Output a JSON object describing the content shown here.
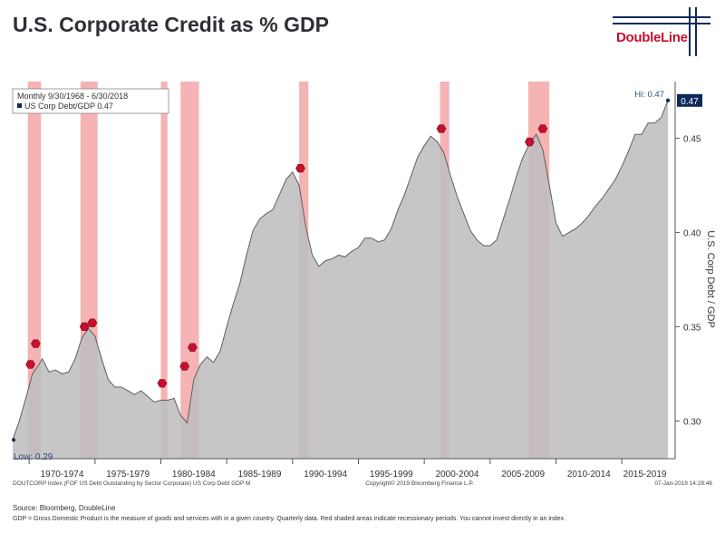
{
  "page": {
    "title": "U.S. Corporate Credit as % GDP",
    "logo_text": "DoubleLine",
    "source": "Source:  Bloomberg, DoubleLine",
    "footnote": "GDP = Gross Domestic Product is the measure of goods and services with in a given country. Quarterly data. Red shaded areas indicate recessionary periods. You cannot invest directly in an index."
  },
  "colors": {
    "area_fill": "#bebebe",
    "area_line": "#5a5f64",
    "recession": "#f4a6a6",
    "marker": "#c8102e",
    "axis_text": "#333333",
    "last_value_bg": "#0c2a5a"
  },
  "chart_data": {
    "type": "area",
    "ylabel": "U.S. Corp Debt / GDP",
    "ylim": [
      0.28,
      0.48
    ],
    "yticks": [
      0.3,
      0.35,
      0.4,
      0.45
    ],
    "ytick_labels": [
      "0.30",
      "0.35",
      "0.40",
      "0.45"
    ],
    "xlim": [
      1968.75,
      2018.5
    ],
    "xtick_labels": [
      "1970-1974",
      "1975-1979",
      "1980-1984",
      "1985-1989",
      "1990-1994",
      "1995-1999",
      "2000-2004",
      "2005-2009",
      "2010-2014",
      "2015-2019"
    ],
    "xtick_ranges": [
      [
        1970,
        1975
      ],
      [
        1975,
        1980
      ],
      [
        1980,
        1985
      ],
      [
        1985,
        1990
      ],
      [
        1990,
        1995
      ],
      [
        1995,
        2000
      ],
      [
        2000,
        2005
      ],
      [
        2005,
        2010
      ],
      [
        2010,
        2015
      ],
      [
        2015,
        2019
      ]
    ],
    "legend": {
      "position": "top-left",
      "line1": "Monthly 9/30/1968 - 6/30/2018",
      "line2": "US Corp Debt/GDP 0.47"
    },
    "series": [
      {
        "name": "US Corp Debt/GDP",
        "x": [
          1968.75,
          1969.25,
          1969.75,
          1970.25,
          1970.75,
          1971.0,
          1971.5,
          1972.0,
          1972.5,
          1973.0,
          1973.5,
          1974.0,
          1974.5,
          1975.0,
          1975.5,
          1976.0,
          1976.5,
          1977.0,
          1977.5,
          1978.0,
          1978.5,
          1979.0,
          1979.5,
          1980.0,
          1980.5,
          1981.0,
          1981.5,
          1982.0,
          1982.5,
          1983.0,
          1983.5,
          1984.0,
          1984.5,
          1985.0,
          1985.5,
          1986.0,
          1986.5,
          1987.0,
          1987.5,
          1988.0,
          1988.5,
          1989.0,
          1989.5,
          1990.0,
          1990.5,
          1991.0,
          1991.5,
          1992.0,
          1992.5,
          1993.0,
          1993.5,
          1994.0,
          1994.5,
          1995.0,
          1995.5,
          1996.0,
          1996.5,
          1997.0,
          1997.5,
          1998.0,
          1998.5,
          1999.0,
          1999.5,
          2000.0,
          2000.5,
          2001.0,
          2001.5,
          2002.0,
          2002.5,
          2003.0,
          2003.5,
          2004.0,
          2004.5,
          2005.0,
          2005.5,
          2006.0,
          2006.5,
          2007.0,
          2007.5,
          2008.0,
          2008.5,
          2009.0,
          2009.5,
          2010.0,
          2010.5,
          2011.0,
          2011.5,
          2012.0,
          2012.5,
          2013.0,
          2013.5,
          2014.0,
          2014.5,
          2015.0,
          2015.5,
          2016.0,
          2016.5,
          2017.0,
          2017.5,
          2018.0,
          2018.5
        ],
        "values": [
          0.29,
          0.3,
          0.312,
          0.325,
          0.33,
          0.333,
          0.326,
          0.327,
          0.325,
          0.326,
          0.333,
          0.344,
          0.349,
          0.345,
          0.333,
          0.322,
          0.318,
          0.318,
          0.316,
          0.314,
          0.316,
          0.313,
          0.31,
          0.311,
          0.311,
          0.312,
          0.303,
          0.299,
          0.322,
          0.33,
          0.334,
          0.331,
          0.337,
          0.35,
          0.362,
          0.373,
          0.388,
          0.401,
          0.407,
          0.41,
          0.412,
          0.42,
          0.428,
          0.432,
          0.425,
          0.403,
          0.388,
          0.382,
          0.385,
          0.386,
          0.388,
          0.387,
          0.39,
          0.392,
          0.397,
          0.397,
          0.395,
          0.396,
          0.402,
          0.412,
          0.42,
          0.43,
          0.44,
          0.446,
          0.451,
          0.448,
          0.442,
          0.43,
          0.419,
          0.41,
          0.401,
          0.396,
          0.393,
          0.393,
          0.396,
          0.407,
          0.418,
          0.43,
          0.44,
          0.447,
          0.452,
          0.444,
          0.425,
          0.405,
          0.398,
          0.4,
          0.402,
          0.405,
          0.409,
          0.414,
          0.418,
          0.423,
          0.428,
          0.435,
          0.443,
          0.452,
          0.452,
          0.458,
          0.458,
          0.461,
          0.47
        ]
      }
    ],
    "recessions": [
      [
        1969.9,
        1970.9
      ],
      [
        1973.9,
        1975.2
      ],
      [
        1980.0,
        1980.5
      ],
      [
        1981.5,
        1982.9
      ],
      [
        1990.5,
        1991.2
      ],
      [
        2001.2,
        2001.9
      ],
      [
        2007.9,
        2009.5
      ]
    ],
    "markers": [
      {
        "x": 1970.1,
        "y": 0.33
      },
      {
        "x": 1970.5,
        "y": 0.341
      },
      {
        "x": 1974.2,
        "y": 0.35
      },
      {
        "x": 1974.8,
        "y": 0.352
      },
      {
        "x": 1980.1,
        "y": 0.32
      },
      {
        "x": 1981.8,
        "y": 0.329
      },
      {
        "x": 1982.4,
        "y": 0.339
      },
      {
        "x": 1990.6,
        "y": 0.434
      },
      {
        "x": 2001.3,
        "y": 0.455
      },
      {
        "x": 2008.0,
        "y": 0.448
      },
      {
        "x": 2009.0,
        "y": 0.455
      }
    ],
    "annotations": {
      "low": "Low: 0.29",
      "high": "Hi: 0.47",
      "last_value": "0.47"
    },
    "footer_left": "DOUTCORP Index (FOF US Debt Outstanding by Sector Corporate) US Corp Debt GDP  M",
    "footer_mid": "Copyright© 2019 Bloomberg Finance L.P.",
    "footer_right": "07-Jan-2019 14:28:46"
  }
}
